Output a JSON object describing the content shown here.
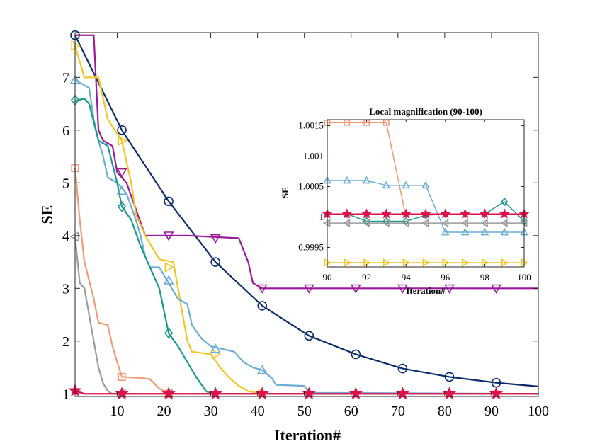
{
  "chart_data": {
    "type": "line",
    "xlabel": "Iteration#",
    "ylabel": "SE",
    "xlim": [
      1,
      100
    ],
    "ylim": [
      0.95,
      7.85
    ],
    "xticks": [
      10,
      20,
      30,
      40,
      50,
      60,
      70,
      80,
      90,
      100
    ],
    "yticks": [
      1,
      2,
      3,
      4,
      5,
      6,
      7
    ],
    "series": [
      {
        "name": "navy",
        "color": "#0c2d6b",
        "marker": "circle",
        "points": [
          [
            1,
            7.8
          ],
          [
            11,
            6.0
          ],
          [
            21,
            4.65
          ],
          [
            31,
            3.5
          ],
          [
            41,
            2.67
          ],
          [
            51,
            2.1
          ],
          [
            61,
            1.75
          ],
          [
            71,
            1.48
          ],
          [
            81,
            1.32
          ],
          [
            91,
            1.21
          ],
          [
            100,
            1.14
          ]
        ],
        "markers": [
          [
            1,
            7.8
          ],
          [
            11,
            6.0
          ],
          [
            21,
            4.65
          ],
          [
            31,
            3.5
          ],
          [
            41,
            2.67
          ],
          [
            51,
            2.1
          ],
          [
            61,
            1.75
          ],
          [
            71,
            1.48
          ],
          [
            81,
            1.32
          ],
          [
            91,
            1.21
          ]
        ]
      },
      {
        "name": "purple",
        "color": "#9a1a9a",
        "marker": "triangle-down",
        "points": [
          [
            1,
            7.8
          ],
          [
            5,
            7.8
          ],
          [
            6,
            6.0
          ],
          [
            7,
            5.8
          ],
          [
            9,
            5.7
          ],
          [
            10,
            5.2
          ],
          [
            12,
            5.0
          ],
          [
            14,
            4.5
          ],
          [
            16,
            4.0
          ],
          [
            25,
            4.0
          ],
          [
            36,
            3.95
          ],
          [
            38,
            3.5
          ],
          [
            39,
            3.1
          ],
          [
            41,
            3.0
          ],
          [
            100,
            3.0
          ]
        ],
        "markers": [
          [
            11,
            5.2
          ],
          [
            21,
            4.0
          ],
          [
            31,
            3.95
          ],
          [
            41,
            3.0
          ],
          [
            51,
            3.0
          ],
          [
            61,
            3.0
          ],
          [
            71,
            3.0
          ],
          [
            81,
            3.0
          ],
          [
            91,
            3.0
          ]
        ]
      },
      {
        "name": "yellow",
        "color": "#f3c623",
        "marker": "triangle-right",
        "points": [
          [
            1,
            7.6
          ],
          [
            3,
            7.0
          ],
          [
            6,
            7.0
          ],
          [
            8,
            6.2
          ],
          [
            11,
            5.8
          ],
          [
            13,
            5.0
          ],
          [
            14,
            4.4
          ],
          [
            16,
            4.0
          ],
          [
            18,
            3.7
          ],
          [
            19,
            3.55
          ],
          [
            22,
            3.5
          ],
          [
            24,
            2.5
          ],
          [
            25,
            2.0
          ],
          [
            26,
            1.8
          ],
          [
            30,
            1.75
          ],
          [
            32,
            1.5
          ],
          [
            34,
            1.3
          ],
          [
            36,
            1.15
          ],
          [
            38,
            1.05
          ],
          [
            41,
            1.0
          ],
          [
            100,
            1.0
          ]
        ],
        "markers": [
          [
            1,
            7.6
          ],
          [
            11,
            5.8
          ],
          [
            21,
            3.4
          ],
          [
            31,
            1.75
          ],
          [
            41,
            1.0
          ]
        ]
      },
      {
        "name": "lightblue",
        "color": "#6aaed6",
        "marker": "triangle-up",
        "points": [
          [
            1,
            6.95
          ],
          [
            4,
            6.8
          ],
          [
            5,
            6.2
          ],
          [
            6,
            5.8
          ],
          [
            7,
            5.5
          ],
          [
            8,
            5.1
          ],
          [
            10,
            5.0
          ],
          [
            12,
            4.8
          ],
          [
            14,
            4.3
          ],
          [
            15,
            4.0
          ],
          [
            16,
            3.6
          ],
          [
            17,
            3.4
          ],
          [
            19,
            3.4
          ],
          [
            21,
            3.1
          ],
          [
            23,
            2.8
          ],
          [
            25,
            2.7
          ],
          [
            26,
            2.3
          ],
          [
            28,
            2.05
          ],
          [
            30,
            1.9
          ],
          [
            35,
            1.8
          ],
          [
            37,
            1.6
          ],
          [
            39,
            1.5
          ],
          [
            41,
            1.45
          ],
          [
            43,
            1.3
          ],
          [
            44,
            1.17
          ],
          [
            50,
            1.15
          ],
          [
            51,
            1.02
          ],
          [
            100,
            1.0
          ]
        ],
        "markers": [
          [
            1,
            6.95
          ],
          [
            11,
            4.85
          ],
          [
            21,
            3.15
          ],
          [
            31,
            1.85
          ],
          [
            41,
            1.45
          ],
          [
            51,
            1.02
          ]
        ]
      },
      {
        "name": "teal",
        "color": "#1a9a8a",
        "marker": "diamond",
        "points": [
          [
            1,
            6.55
          ],
          [
            3,
            6.6
          ],
          [
            4,
            6.5
          ],
          [
            6,
            5.8
          ],
          [
            8,
            5.7
          ],
          [
            10,
            5.0
          ],
          [
            11,
            4.55
          ],
          [
            13,
            4.3
          ],
          [
            15,
            3.8
          ],
          [
            17,
            3.4
          ],
          [
            19,
            3.0
          ],
          [
            21,
            2.15
          ],
          [
            23,
            1.9
          ],
          [
            25,
            1.6
          ],
          [
            27,
            1.3
          ],
          [
            29,
            1.05
          ],
          [
            30,
            1.0
          ],
          [
            100,
            1.0
          ]
        ],
        "markers": [
          [
            1,
            6.57
          ],
          [
            11,
            4.55
          ],
          [
            21,
            2.15
          ]
        ]
      },
      {
        "name": "salmon",
        "color": "#f29a76",
        "marker": "square",
        "points": [
          [
            1,
            5.28
          ],
          [
            2,
            4.3
          ],
          [
            3,
            3.5
          ],
          [
            5,
            2.8
          ],
          [
            6,
            2.35
          ],
          [
            8,
            2.3
          ],
          [
            9,
            1.9
          ],
          [
            10,
            1.6
          ],
          [
            11,
            1.32
          ],
          [
            15,
            1.3
          ],
          [
            17,
            1.28
          ],
          [
            19,
            1.1
          ],
          [
            21,
            1.0
          ],
          [
            100,
            1.0
          ]
        ],
        "markers": [
          [
            1,
            5.28
          ],
          [
            11,
            1.32
          ],
          [
            21,
            1.0
          ]
        ]
      },
      {
        "name": "gray",
        "color": "#9c9c9c",
        "marker": "triangle-left",
        "points": [
          [
            1,
            3.98
          ],
          [
            2,
            3.1
          ],
          [
            3,
            3.0
          ],
          [
            4,
            2.5
          ],
          [
            5,
            2.0
          ],
          [
            6,
            1.5
          ],
          [
            7,
            1.2
          ],
          [
            8,
            1.05
          ],
          [
            9,
            1.0
          ],
          [
            100,
            1.0
          ]
        ],
        "markers": [
          [
            1,
            3.98
          ],
          [
            11,
            1.0
          ],
          [
            21,
            1.0
          ]
        ]
      },
      {
        "name": "crimson",
        "color": "#e0104a",
        "marker": "star",
        "points": [
          [
            1,
            1.06
          ],
          [
            3,
            1.0
          ],
          [
            100,
            1.0
          ]
        ],
        "markers": [
          [
            1,
            1.06
          ],
          [
            11,
            1.0
          ],
          [
            21,
            1.0
          ],
          [
            31,
            1.0
          ],
          [
            41,
            1.0
          ],
          [
            51,
            1.0
          ],
          [
            61,
            1.0
          ],
          [
            71,
            1.0
          ],
          [
            81,
            1.0
          ],
          [
            91,
            1.0
          ]
        ]
      }
    ],
    "inset": {
      "title": "Local magnification (90-100)",
      "xlabel": "Iteration#",
      "ylabel": "SE",
      "xlim": [
        90,
        100
      ],
      "ylim": [
        0.99918,
        1.0016
      ],
      "xticks": [
        90,
        92,
        94,
        96,
        98,
        100
      ],
      "yticks": [
        0.9995,
        1,
        1.0005,
        1.001,
        1.0015
      ],
      "ytick_labels": [
        "0.9995",
        "1",
        "1.0005",
        "1.001",
        "1.0015"
      ],
      "series": [
        {
          "name": "salmon",
          "color": "#f29a76",
          "marker": "square",
          "points": [
            [
              90,
              1.00155
            ],
            [
              91,
              1.00155
            ],
            [
              92,
              1.00155
            ],
            [
              93,
              1.00155
            ],
            [
              94,
              1.0
            ]
          ],
          "markers": [
            [
              90,
              1.00155
            ],
            [
              91,
              1.00155
            ],
            [
              92,
              1.00155
            ],
            [
              93,
              1.00155
            ]
          ]
        },
        {
          "name": "lightblue",
          "color": "#6aaed6",
          "marker": "triangle-up",
          "points": [
            [
              90,
              1.0006
            ],
            [
              91,
              1.0006
            ],
            [
              92,
              1.0006
            ],
            [
              93,
              1.00052
            ],
            [
              94,
              1.00052
            ],
            [
              95,
              1.00052
            ],
            [
              96,
              0.99975
            ],
            [
              97,
              0.99975
            ],
            [
              98,
              0.99975
            ],
            [
              99,
              0.99975
            ],
            [
              100,
              0.99975
            ]
          ],
          "markers": [
            [
              90,
              1.0006
            ],
            [
              91,
              1.0006
            ],
            [
              92,
              1.0006
            ],
            [
              93,
              1.00052
            ],
            [
              94,
              1.00052
            ],
            [
              95,
              1.00052
            ],
            [
              96,
              0.99975
            ],
            [
              97,
              0.99975
            ],
            [
              98,
              0.99975
            ],
            [
              99,
              0.99975
            ],
            [
              100,
              0.99975
            ]
          ]
        },
        {
          "name": "teal",
          "color": "#1a9a8a",
          "marker": "diamond",
          "points": [
            [
              90,
              1.00005
            ],
            [
              91,
              1.00005
            ],
            [
              92,
              0.99993
            ],
            [
              93,
              0.99993
            ],
            [
              94,
              0.99993
            ],
            [
              95,
              1.00003
            ],
            [
              96,
              1.00005
            ],
            [
              97,
              1.00005
            ],
            [
              98,
              1.00005
            ],
            [
              99,
              1.00025
            ],
            [
              100,
              0.99993
            ]
          ],
          "markers": [
            [
              90,
              1.00005
            ],
            [
              91,
              1.00005
            ],
            [
              92,
              0.99993
            ],
            [
              93,
              0.99993
            ],
            [
              94,
              0.99993
            ],
            [
              95,
              1.00003
            ],
            [
              96,
              1.00005
            ],
            [
              97,
              1.00005
            ],
            [
              98,
              1.00005
            ],
            [
              99,
              1.00025
            ],
            [
              100,
              0.99993
            ]
          ]
        },
        {
          "name": "gray",
          "color": "#9c9c9c",
          "marker": "triangle-left",
          "points": [
            [
              90,
              0.9999
            ],
            [
              100,
              0.9999
            ]
          ],
          "markers": [
            [
              90,
              0.9999
            ],
            [
              91,
              0.9999
            ],
            [
              92,
              0.9999
            ],
            [
              93,
              0.9999
            ],
            [
              94,
              0.9999
            ],
            [
              95,
              0.9999
            ],
            [
              96,
              0.9999
            ],
            [
              97,
              0.9999
            ],
            [
              98,
              0.9999
            ],
            [
              99,
              0.9999
            ],
            [
              100,
              0.9999
            ]
          ]
        },
        {
          "name": "yellow",
          "color": "#f3c623",
          "marker": "triangle-right",
          "points": [
            [
              90,
              0.99925
            ],
            [
              100,
              0.99925
            ]
          ],
          "markers": [
            [
              90,
              0.99925
            ],
            [
              91,
              0.99925
            ],
            [
              92,
              0.99925
            ],
            [
              93,
              0.99925
            ],
            [
              94,
              0.99925
            ],
            [
              95,
              0.99925
            ],
            [
              96,
              0.99925
            ],
            [
              97,
              0.99925
            ],
            [
              98,
              0.99925
            ],
            [
              99,
              0.99925
            ],
            [
              100,
              0.99925
            ]
          ]
        },
        {
          "name": "crimson",
          "color": "#e0104a",
          "marker": "star",
          "points": [
            [
              90,
              1.00005
            ],
            [
              100,
              1.00005
            ]
          ],
          "markers": [
            [
              90,
              1.00005
            ],
            [
              91,
              1.00005
            ],
            [
              92,
              1.00005
            ],
            [
              93,
              1.00005
            ],
            [
              94,
              1.00005
            ],
            [
              95,
              1.00005
            ],
            [
              96,
              1.00005
            ],
            [
              97,
              1.00005
            ],
            [
              98,
              1.00005
            ],
            [
              99,
              1.00005
            ],
            [
              100,
              1.00005
            ]
          ]
        }
      ]
    }
  }
}
